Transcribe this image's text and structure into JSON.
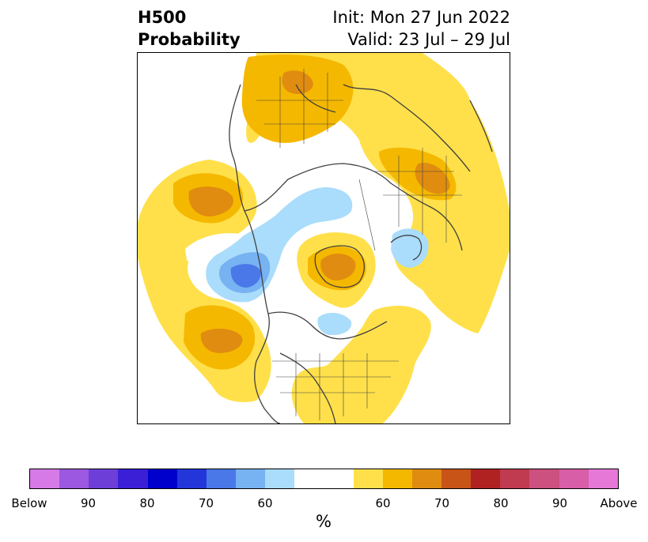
{
  "title": {
    "left_line1": "H500",
    "left_line2": "Probability",
    "right_line1": "Init: Mon 27 Jun 2022",
    "right_line2": "Valid: 23 Jul – 29 Jul"
  },
  "colorbar": {
    "unit": "%",
    "colors": [
      "#d57ae6",
      "#9c58e0",
      "#6d3fd8",
      "#3a1fd6",
      "#0000cc",
      "#2336d9",
      "#4a78e8",
      "#77b2f2",
      "#aadcfb",
      "#ffffff",
      "#ffffff",
      "#ffe04a",
      "#f5b800",
      "#e08c10",
      "#c85418",
      "#b02222",
      "#c03a50",
      "#cc5080",
      "#d85ea8",
      "#e678d8"
    ],
    "labels": [
      "Below",
      "90",
      "80",
      "70",
      "60",
      "60",
      "70",
      "80",
      "90",
      "Above"
    ]
  },
  "map": {
    "projection": "north-polar-stereographic",
    "legend": "colorbar below map"
  }
}
